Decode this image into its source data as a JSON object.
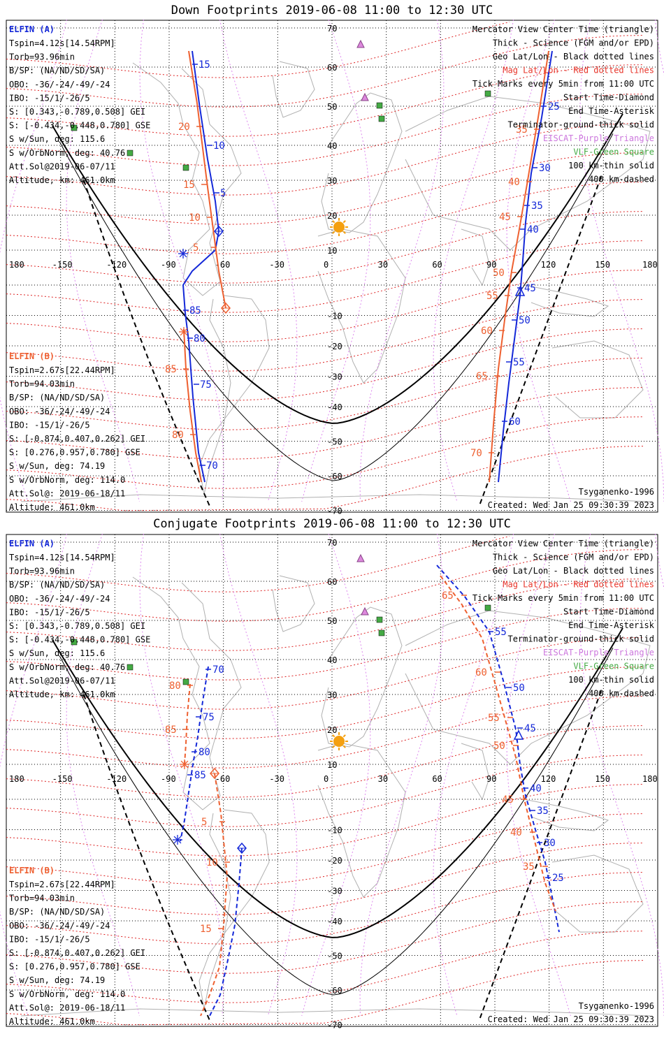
{
  "panels": [
    {
      "title": "Down Footprints 2019-06-08 11:00 to 12:30 UTC",
      "created": "Created: Wed Jan 25 09:30:39 2023",
      "model": "Tsyganenko-1996",
      "track_labels": {
        "A_science": [
          "15",
          "10",
          "5"
        ],
        "A_south": [
          "85",
          "80",
          "75",
          "70"
        ],
        "A_east": [
          "25",
          "30",
          "35",
          "40",
          "45",
          "50",
          "55",
          "60"
        ],
        "B_west": [
          "20",
          "15",
          "10",
          "5"
        ],
        "B_south": [
          "85",
          "80"
        ],
        "B_east": [
          "35",
          "40",
          "45",
          "50",
          "55",
          "60",
          "65",
          "70"
        ]
      }
    },
    {
      "title": "Conjugate Footprints 2019-06-08 11:00 to 12:30 UTC",
      "created": "Created: Wed Jan 25 09:30:39 2023",
      "model": "Tsyganenko-1996",
      "track_labels": {
        "A_west": [
          "70",
          "75",
          "80",
          "85"
        ],
        "A_east": [
          "55",
          "50",
          "45",
          "40",
          "35",
          "30",
          "25"
        ],
        "B_west": [
          "80",
          "85",
          "5",
          "10",
          "15"
        ],
        "B_east": [
          "65",
          "60",
          "55",
          "50",
          "45",
          "40",
          "35"
        ]
      }
    }
  ],
  "elfin_a": {
    "name": "ELFIN (A)",
    "lines": [
      "Tspin=4.12s[14.54RPM]",
      "Torb=93.96min",
      "B/SP: (NA/ND/SD/SA)",
      "OBO: -36/-24/-49/-24",
      "IBO: -15/1/-26/5",
      "S: [0.343,-0.789,0.508] GEI",
      "S: [-0.434,-0.448,0.780] GSE",
      "S w/Sun, deg: 115.6",
      "S w/OrbNorm, deg: 40.76",
      "Att.Sol@2019-06-07/11",
      "Altitude, km: 461.0km"
    ]
  },
  "elfin_b": {
    "name": "ELFIN (B)",
    "lines": [
      "Tspin=2.67s[22.44RPM]",
      "Torb=94.03min",
      "B/SP: (NA/ND/SD/SA)",
      "OBO: -36/-24/-49/-24",
      "IBO: -15/1/-26/5",
      "S: [-0.874,0.407,0.262] GEI",
      "S: [0.276,0.957,0.780] GSE",
      "S w/Sun, deg: 74.19",
      "S w/OrbNorm, deg: 114.0",
      "Att.Sol@: 2019-06-18/11",
      "Altitude: 461.0km"
    ]
  },
  "legend": [
    {
      "text": "Mercator View Center Time (triangle)",
      "color": "#000000"
    },
    {
      "text": "Thick - Science (FGM and/or EPD)",
      "color": "#000000"
    },
    {
      "text": "Geo Lat/Lon - Black dotted lines",
      "color": "#000000"
    },
    {
      "text": "Mag Lat/Lon - Red dotted lines",
      "color": "#e8352a"
    },
    {
      "text": "Tick Marks every 5min from 11:00 UTC",
      "color": "#000000"
    },
    {
      "text": "Start Time-Diamond",
      "color": "#000000"
    },
    {
      "text": "End Time-Asterisk",
      "color": "#000000"
    },
    {
      "text": "Terminator-ground-thick solid",
      "color": "#000000"
    },
    {
      "text": "EISCAT-Purple Triangle",
      "color": "#cc77dd"
    },
    {
      "text": "VLF-Green Square",
      "color": "#44aa44"
    },
    {
      "text": "100 km-thin solid",
      "color": "#000000"
    },
    {
      "text": "400 km-dashed",
      "color": "#000000"
    }
  ],
  "lon_ticks": [
    "180",
    "-150",
    "-120",
    "-90",
    "-60",
    "-30",
    "0",
    "30",
    "60",
    "90",
    "120",
    "150",
    "180"
  ],
  "lat_ticks": [
    "70",
    "60",
    "50",
    "40",
    "30",
    "20",
    "10",
    "-10",
    "-20",
    "-30",
    "-40",
    "-50",
    "-60",
    "-70"
  ],
  "colors": {
    "elfin_a": "#1428d8",
    "elfin_b": "#ee6030",
    "mag_grid": "#dd2222",
    "geo_grid": "#000000",
    "eiscat": "#dd88ee",
    "vlf": "#44aa44",
    "sun": "#f4a010",
    "coast": "#b0b0b0"
  },
  "icons": [
    "sun-icon",
    "eiscat-triangle-icon",
    "vlf-square-icon",
    "start-diamond-icon",
    "end-asterisk-icon",
    "center-triangle-icon"
  ]
}
